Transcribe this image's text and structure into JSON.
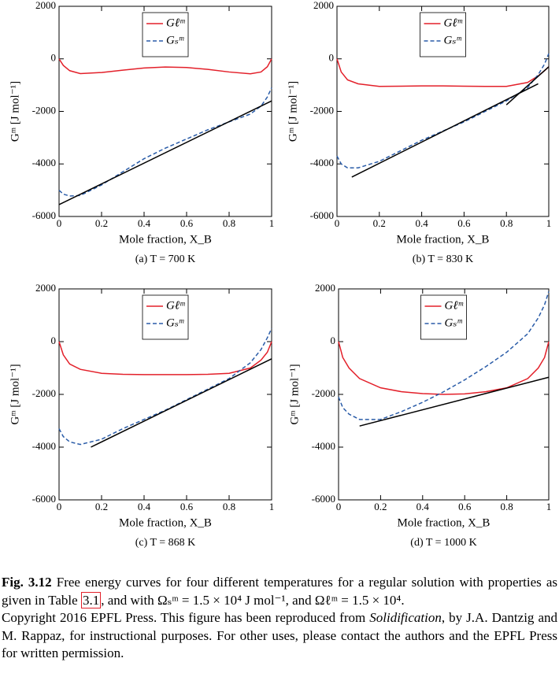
{
  "chart_data": [
    {
      "type": "line",
      "subtitle": "(a) T = 700 K",
      "xlabel": "Mole fraction, X_B",
      "ylabel": "Gᵐ [J mol⁻¹]",
      "legend": "upper center",
      "x": [
        0,
        0.02,
        0.05,
        0.1,
        0.2,
        0.3,
        0.4,
        0.5,
        0.6,
        0.7,
        0.8,
        0.9,
        0.95,
        0.98,
        1
      ],
      "series": [
        {
          "name": "Gℓᵐ",
          "color": "#e3202a",
          "dash": false,
          "values": [
            0,
            -250,
            -450,
            -560,
            -520,
            -430,
            -350,
            -310,
            -330,
            -400,
            -500,
            -570,
            -500,
            -300,
            0
          ]
        },
        {
          "name": "Gₛᵐ",
          "color": "#2a5ca8",
          "dash": true,
          "values": [
            -5000,
            -5150,
            -5220,
            -5200,
            -4800,
            -4300,
            -3800,
            -3400,
            -3050,
            -2700,
            -2400,
            -2100,
            -1800,
            -1450,
            -1100
          ]
        },
        {
          "color": "#000000",
          "dash": false,
          "x": [
            0,
            1
          ],
          "values": [
            -5550,
            -1600
          ]
        }
      ],
      "xlim": [
        0,
        1
      ],
      "xticks": [
        0,
        0.2,
        0.4,
        0.6,
        0.8,
        1
      ],
      "ylim": [
        -6000,
        2000
      ],
      "yticks": [
        -6000,
        -4000,
        -2000,
        0,
        2000
      ]
    },
    {
      "type": "line",
      "subtitle": "(b) T = 830 K",
      "xlabel": "Mole fraction, X_B",
      "ylabel": "Gᵐ [J mol⁻¹]",
      "legend": "upper center",
      "x": [
        0,
        0.02,
        0.05,
        0.1,
        0.2,
        0.3,
        0.4,
        0.5,
        0.6,
        0.7,
        0.8,
        0.9,
        0.95,
        0.98,
        1
      ],
      "series": [
        {
          "name": "Gℓᵐ",
          "color": "#e3202a",
          "dash": false,
          "values": [
            0,
            -500,
            -800,
            -950,
            -1050,
            -1040,
            -1030,
            -1030,
            -1040,
            -1050,
            -1050,
            -900,
            -650,
            -450,
            -300
          ]
        },
        {
          "name": "Gₛᵐ",
          "color": "#2a5ca8",
          "dash": true,
          "values": [
            -3700,
            -4000,
            -4150,
            -4150,
            -3900,
            -3500,
            -3100,
            -2750,
            -2400,
            -2000,
            -1600,
            -1100,
            -600,
            -200,
            200
          ]
        },
        {
          "color": "#000000",
          "dash": false,
          "x": [
            0.07,
            0.95
          ],
          "values": [
            -4500,
            -950
          ]
        },
        {
          "color": "#000000",
          "dash": false,
          "x": [
            0.8,
            1
          ],
          "values": [
            -1750,
            -300
          ]
        }
      ],
      "xlim": [
        0,
        1
      ],
      "xticks": [
        0,
        0.2,
        0.4,
        0.6,
        0.8,
        1
      ],
      "ylim": [
        -6000,
        2000
      ],
      "yticks": [
        -6000,
        -4000,
        -2000,
        0,
        2000
      ]
    },
    {
      "type": "line",
      "subtitle": "(c) T = 868 K",
      "xlabel": "Mole fraction, X_B",
      "ylabel": "Gᵐ [J mol⁻¹]",
      "legend": "upper center",
      "x": [
        0,
        0.02,
        0.05,
        0.1,
        0.2,
        0.3,
        0.4,
        0.5,
        0.6,
        0.7,
        0.8,
        0.9,
        0.95,
        0.98,
        1
      ],
      "series": [
        {
          "name": "Gℓᵐ",
          "color": "#e3202a",
          "dash": false,
          "values": [
            0,
            -500,
            -850,
            -1050,
            -1200,
            -1240,
            -1250,
            -1250,
            -1250,
            -1240,
            -1200,
            -1000,
            -700,
            -400,
            0
          ]
        },
        {
          "name": "Gₛᵐ",
          "color": "#2a5ca8",
          "dash": true,
          "values": [
            -3300,
            -3600,
            -3800,
            -3900,
            -3700,
            -3300,
            -2950,
            -2600,
            -2200,
            -1800,
            -1400,
            -800,
            -300,
            150,
            500
          ]
        },
        {
          "color": "#000000",
          "dash": false,
          "x": [
            0.15,
            1
          ],
          "values": [
            -4000,
            -650
          ]
        }
      ],
      "xlim": [
        0,
        1
      ],
      "xticks": [
        0,
        0.2,
        0.4,
        0.6,
        0.8,
        1
      ],
      "ylim": [
        -6000,
        2000
      ],
      "yticks": [
        -6000,
        -4000,
        -2000,
        0,
        2000
      ]
    },
    {
      "type": "line",
      "subtitle": "(d) T = 1000 K",
      "xlabel": "Mole fraction, X_B",
      "ylabel": "Gᵐ [J mol⁻¹]",
      "legend": "upper center",
      "x": [
        0,
        0.02,
        0.05,
        0.1,
        0.2,
        0.3,
        0.4,
        0.5,
        0.6,
        0.7,
        0.8,
        0.9,
        0.95,
        0.98,
        1
      ],
      "series": [
        {
          "name": "Gℓᵐ",
          "color": "#e3202a",
          "dash": false,
          "values": [
            0,
            -600,
            -1000,
            -1400,
            -1750,
            -1900,
            -1970,
            -2000,
            -1980,
            -1900,
            -1750,
            -1400,
            -1000,
            -600,
            0
          ]
        },
        {
          "name": "Gₛᵐ",
          "color": "#2a5ca8",
          "dash": true,
          "values": [
            -2100,
            -2500,
            -2750,
            -2950,
            -2950,
            -2650,
            -2300,
            -1900,
            -1450,
            -950,
            -400,
            300,
            900,
            1400,
            1900
          ]
        },
        {
          "color": "#000000",
          "dash": false,
          "x": [
            0.1,
            1
          ],
          "values": [
            -3200,
            -1350
          ]
        }
      ],
      "xlim": [
        0,
        1
      ],
      "xticks": [
        0,
        0.2,
        0.4,
        0.6,
        0.8,
        1
      ],
      "ylim": [
        -6000,
        2000
      ],
      "yticks": [
        -6000,
        -4000,
        -2000,
        0,
        2000
      ]
    }
  ],
  "caption": {
    "label": "Fig. 3.12",
    "text1": "Free energy curves for four different temperatures for a regular solution with properties as given in Table",
    "link": "3.1",
    "text2": ", and with Ωₛᵐ = 1.5 × 10⁴ J mol⁻¹, and Ωℓᵐ = 1.5 × 10⁴.",
    "copyright1": "Copyright 2016 EPFL Press. This figure has been reproduced from",
    "book": "Solidification",
    "copyright2": ", by J.A. Dantzig and M. Rappaz, for instructional purposes. For other uses, please contact the authors and the EPFL Press for written permission."
  }
}
